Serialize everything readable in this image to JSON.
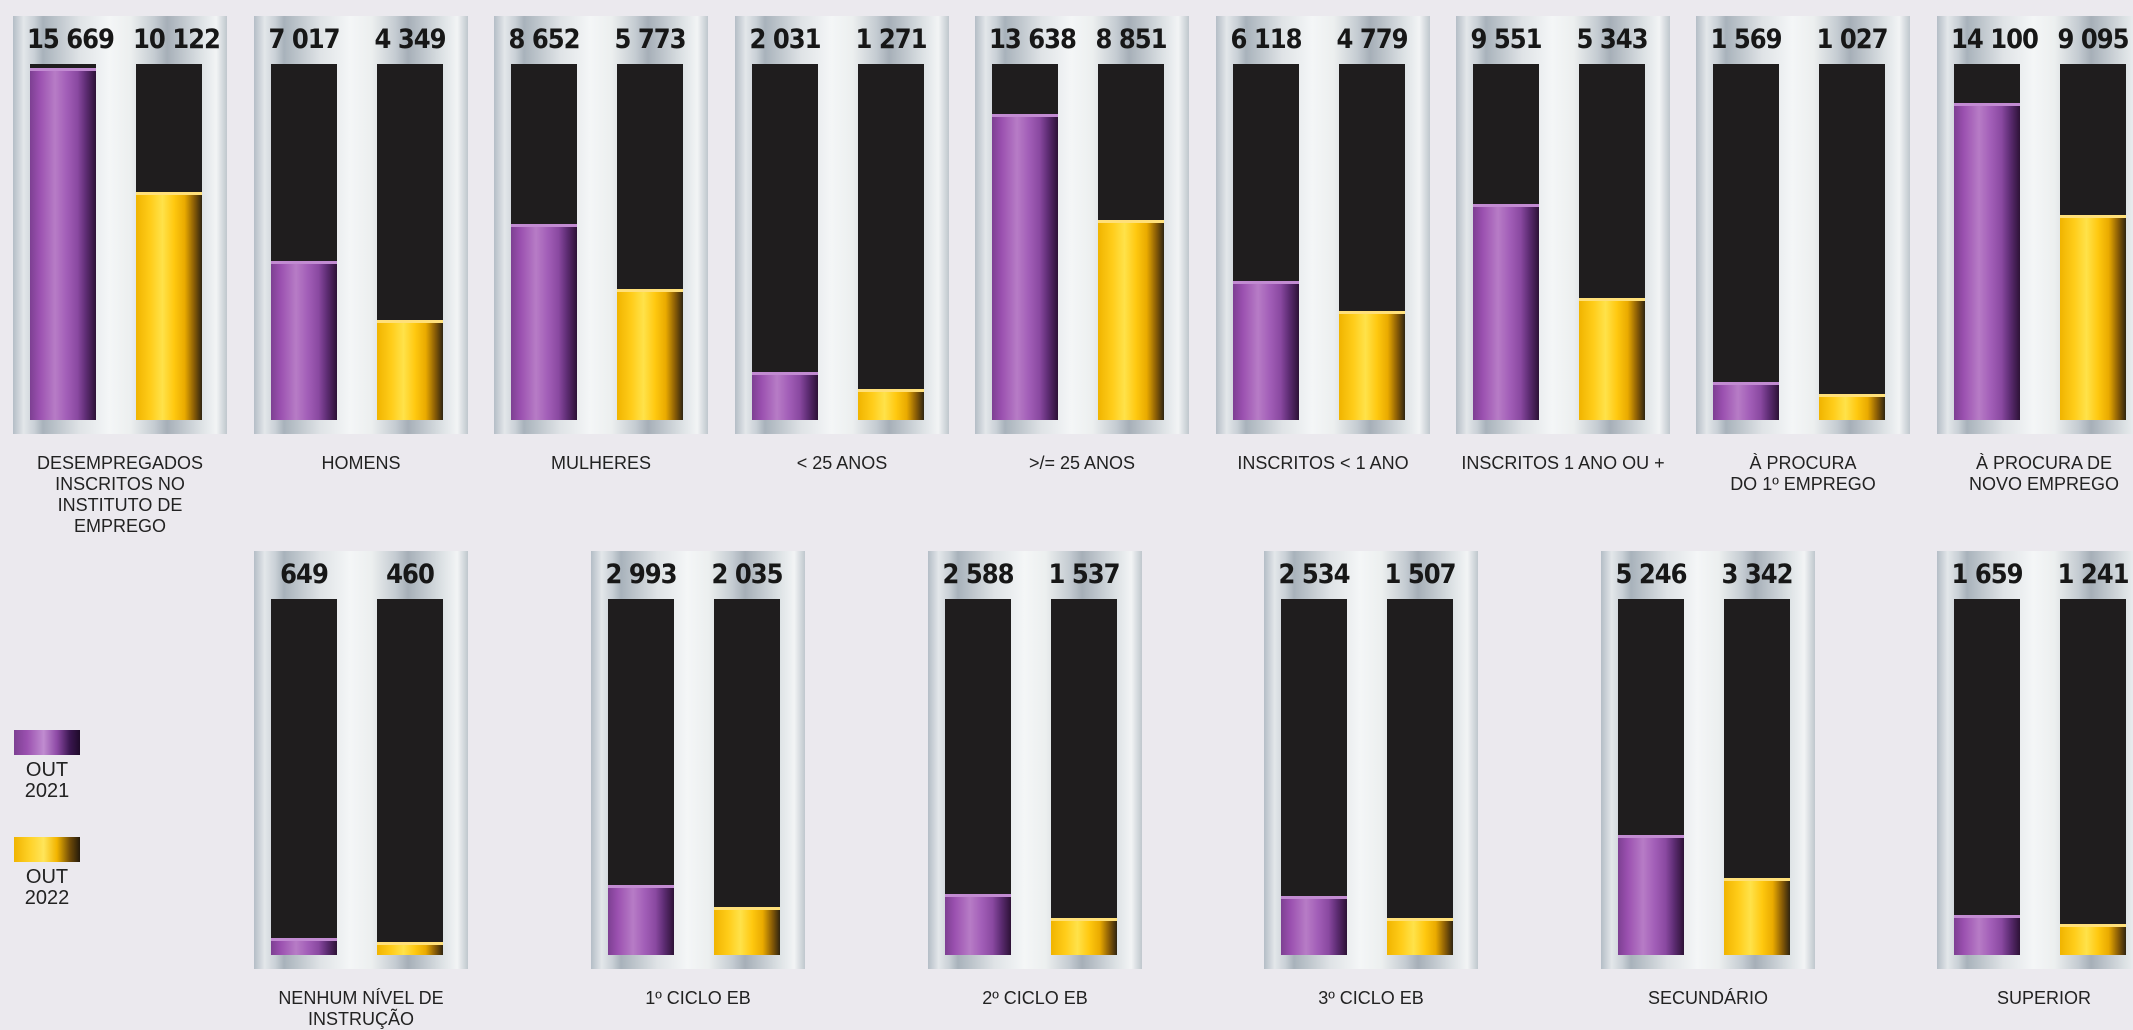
{
  "chart_data": {
    "type": "bar",
    "legend": [
      {
        "label": "OUT\n2021",
        "color": "#9b51b0"
      },
      {
        "label": "OUT\n2022",
        "color": "#ffc80f"
      }
    ],
    "series": [
      {
        "name": "OUT 2021"
      },
      {
        "name": "OUT 2022"
      }
    ],
    "groups": [
      {
        "category": "DESEMPREGADOS\nINSCRITOS NO\nINSTITUTO DE\nEMPREGO",
        "v2021": 15669,
        "label2021": "15 669",
        "v2022": 10122,
        "label2022": "10 122"
      },
      {
        "category": "HOMENS",
        "v2021": 7017,
        "label2021": "7 017",
        "v2022": 4349,
        "label2022": "4 349"
      },
      {
        "category": "MULHERES",
        "v2021": 8652,
        "label2021": "8 652",
        "v2022": 5773,
        "label2022": "5 773"
      },
      {
        "category": "< 25 ANOS",
        "v2021": 2031,
        "label2021": "2 031",
        "v2022": 1271,
        "label2022": "1 271"
      },
      {
        "category": ">/= 25 ANOS",
        "v2021": 13638,
        "label2021": "13 638",
        "v2022": 8851,
        "label2022": "8 851"
      },
      {
        "category": "INSCRITOS < 1 ANO",
        "v2021": 6118,
        "label2021": "6 118",
        "v2022": 4779,
        "label2022": "4 779"
      },
      {
        "category": "INSCRITOS 1 ANO OU +",
        "v2021": 9551,
        "label2021": "9 551",
        "v2022": 5343,
        "label2022": "5 343"
      },
      {
        "category": "À PROCURA\nDO 1º EMPREGO",
        "v2021": 1569,
        "label2021": "1 569",
        "v2022": 1027,
        "label2022": "1 027"
      },
      {
        "category": "À PROCURA DE\nNOVO EMPREGO",
        "v2021": 14100,
        "label2021": "14 100",
        "v2022": 9095,
        "label2022": "9 095"
      },
      {
        "category": "NENHUM NÍVEL DE\nINSTRUÇÃO",
        "v2021": 649,
        "label2021": "649",
        "v2022": 460,
        "label2022": "460"
      },
      {
        "category": "1º CICLO EB",
        "v2021": 2993,
        "label2021": "2 993",
        "v2022": 2035,
        "label2022": "2 035"
      },
      {
        "category": "2º CICLO EB",
        "v2021": 2588,
        "label2021": "2 588",
        "v2022": 1537,
        "label2022": "1 537"
      },
      {
        "category": "3º CICLO EB",
        "v2021": 2534,
        "label2021": "2 534",
        "v2022": 1507,
        "label2022": "1 507"
      },
      {
        "category": "SECUNDÁRIO",
        "v2021": 5246,
        "label2021": "5 246",
        "v2022": 3342,
        "label2022": "3 342"
      },
      {
        "category": "SUPERIOR",
        "v2021": 1659,
        "label2021": "1 659",
        "v2022": 1241,
        "label2022": "1 241"
      }
    ],
    "ylim": [
      0,
      16000
    ],
    "grid": false,
    "legend_position": "left"
  }
}
